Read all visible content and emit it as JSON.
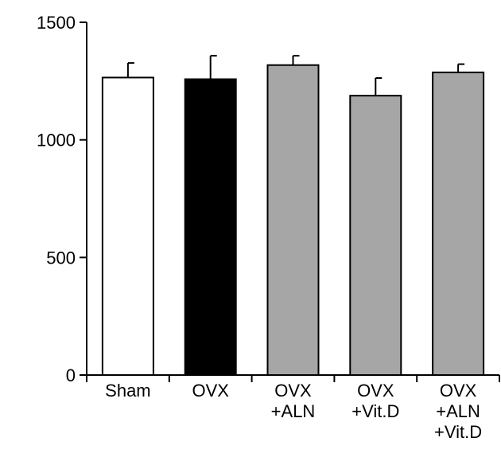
{
  "chart_data": {
    "type": "bar",
    "categories": [
      [
        "Sham"
      ],
      [
        "OVX"
      ],
      [
        "OVX",
        "+ALN"
      ],
      [
        "OVX",
        "+Vit.D"
      ],
      [
        "OVX",
        "+ALN",
        "+Vit.D"
      ]
    ],
    "values": [
      1265,
      1258,
      1318,
      1188,
      1287
    ],
    "errors": [
      62,
      100,
      40,
      75,
      35
    ],
    "bar_colors": [
      "#ffffff",
      "#000000",
      "#a6a6a6",
      "#a6a6a6",
      "#a6a6a6"
    ],
    "title": "",
    "xlabel": "",
    "ylabel": "",
    "ylim": [
      0,
      1500
    ],
    "yticks": [
      0,
      500,
      1000,
      1500
    ],
    "ytick_labels": [
      "0",
      "500",
      "1000",
      "1500"
    ],
    "grid": false,
    "legend": "none"
  }
}
